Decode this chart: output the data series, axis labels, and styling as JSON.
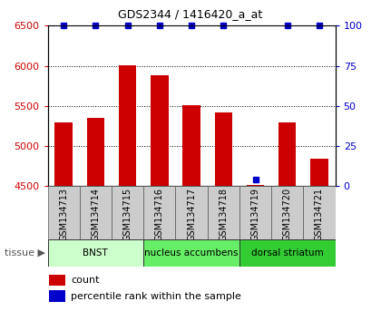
{
  "title": "GDS2344 / 1416420_a_at",
  "samples": [
    "GSM134713",
    "GSM134714",
    "GSM134715",
    "GSM134716",
    "GSM134717",
    "GSM134718",
    "GSM134719",
    "GSM134720",
    "GSM134721"
  ],
  "counts": [
    5300,
    5350,
    6010,
    5880,
    5510,
    5420,
    4510,
    5290,
    4840
  ],
  "percentiles": [
    100,
    100,
    100,
    100,
    100,
    100,
    4,
    100,
    100
  ],
  "ymin": 4500,
  "ymax": 6500,
  "yticks_left": [
    4500,
    5000,
    5500,
    6000,
    6500
  ],
  "yticks_right": [
    0,
    25,
    50,
    75,
    100
  ],
  "bar_color": "#cc0000",
  "percentile_color": "#0000cc",
  "tissue_groups": [
    {
      "label": "BNST",
      "start": 0,
      "end": 3,
      "color": "#ccffcc"
    },
    {
      "label": "nucleus accumbens",
      "start": 3,
      "end": 6,
      "color": "#66ee66"
    },
    {
      "label": "dorsal striatum",
      "start": 6,
      "end": 9,
      "color": "#33cc33"
    }
  ],
  "legend_count_label": "count",
  "legend_percentile_label": "percentile rank within the sample",
  "tissue_label": "tissue",
  "bar_color_left_axis": "#cc0000",
  "percentile_color_right_axis": "#0000cc",
  "sample_box_color": "#cccccc",
  "title_fontsize": 9,
  "axis_fontsize": 8,
  "label_fontsize": 7,
  "legend_fontsize": 8
}
